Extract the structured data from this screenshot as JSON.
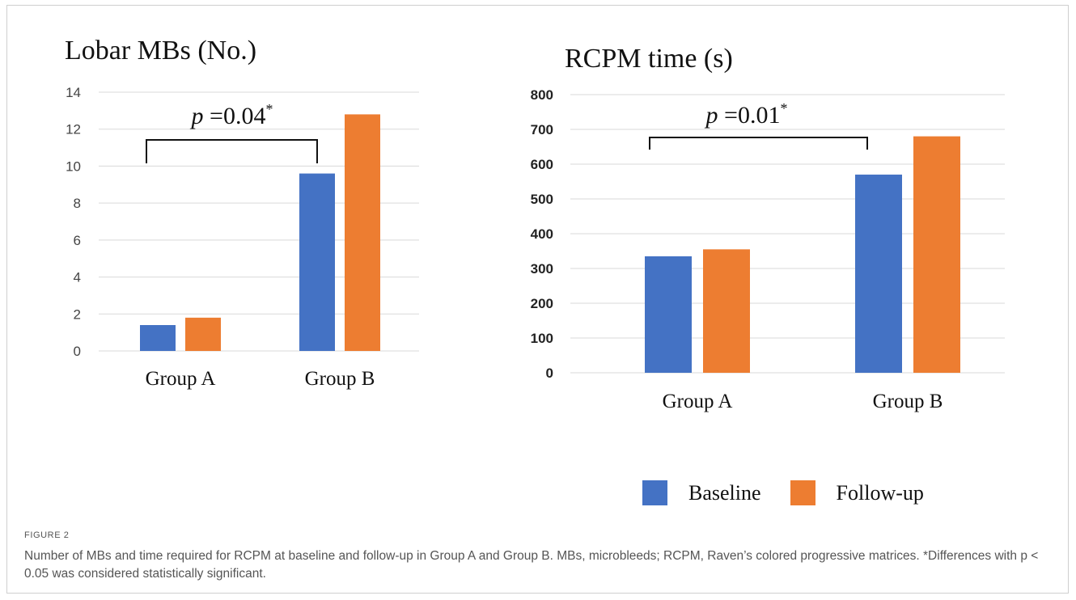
{
  "figure": {
    "label": "FIGURE 2",
    "caption": "Number of MBs and time required for RCPM at baseline and follow-up in Group A and Group B. MBs, microbleeds; RCPM, Raven’s colored progressive matrices. *Differences with p < 0.05 was considered statistically significant."
  },
  "legend": {
    "baseline": "Baseline",
    "followup": "Follow-up"
  },
  "colors": {
    "baseline": "#4472C4",
    "followup": "#ED7D31",
    "grid": "#D9D9D9"
  },
  "chart_data": [
    {
      "type": "bar",
      "title": "Lobar MBs (No.)",
      "categories": [
        "Group A",
        "Group B"
      ],
      "series": [
        {
          "name": "Baseline",
          "values": [
            1.4,
            9.6
          ]
        },
        {
          "name": "Follow-up",
          "values": [
            1.8,
            12.8
          ]
        }
      ],
      "ylim": [
        0,
        14
      ],
      "yticks": [
        0,
        2,
        4,
        6,
        8,
        10,
        12,
        14
      ],
      "annotation": {
        "p_label": "p",
        "value_label": "=0.04",
        "star": "*"
      },
      "grid": true,
      "legend_position": "bottom-right"
    },
    {
      "type": "bar",
      "title": "RCPM time (s)",
      "categories": [
        "Group A",
        "Group B"
      ],
      "series": [
        {
          "name": "Baseline",
          "values": [
            335,
            570
          ]
        },
        {
          "name": "Follow-up",
          "values": [
            355,
            680
          ]
        }
      ],
      "ylim": [
        0,
        800
      ],
      "yticks": [
        0,
        100,
        200,
        300,
        400,
        500,
        600,
        700,
        800
      ],
      "annotation": {
        "p_label": "p",
        "value_label": "=0.01",
        "star": "*"
      },
      "grid": true,
      "legend_position": "bottom-right"
    }
  ]
}
